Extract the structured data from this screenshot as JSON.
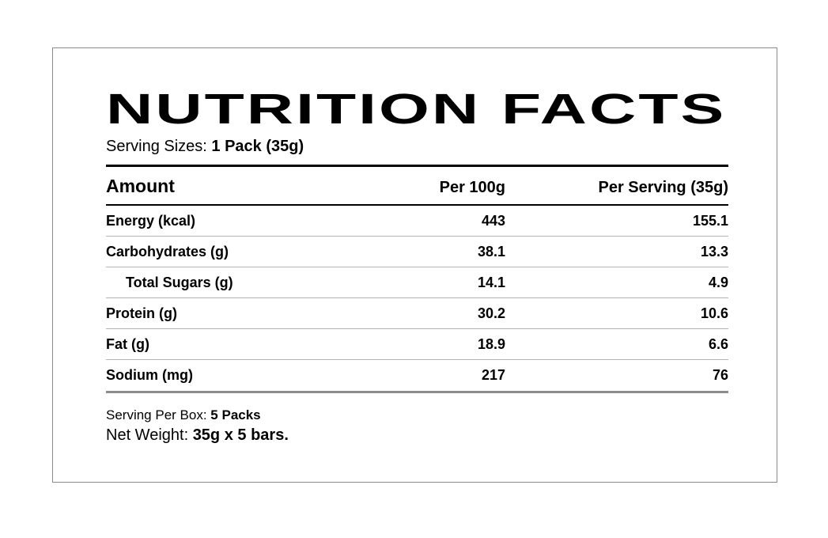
{
  "title": "NUTRITION FACTS",
  "serving_size": {
    "label": "Serving Sizes:",
    "value": "1 Pack (35g)"
  },
  "table": {
    "headers": {
      "amount": "Amount",
      "per_100g": "Per 100g",
      "per_serving": "Per Serving (35g)"
    },
    "rows": [
      {
        "name": "Energy (kcal)",
        "per_100g": "443",
        "per_serving": "155.1",
        "indent": false
      },
      {
        "name": "Carbohydrates (g)",
        "per_100g": "38.1",
        "per_serving": "13.3",
        "indent": false
      },
      {
        "name": "Total Sugars (g)",
        "per_100g": "14.1",
        "per_serving": "4.9",
        "indent": true
      },
      {
        "name": "Protein (g)",
        "per_100g": "30.2",
        "per_serving": "10.6",
        "indent": false
      },
      {
        "name": "Fat (g)",
        "per_100g": "18.9",
        "per_serving": "6.6",
        "indent": false
      },
      {
        "name": "Sodium (mg)",
        "per_100g": "217",
        "per_serving": "76",
        "indent": false
      }
    ]
  },
  "footer": {
    "serving_per_box_label": "Serving Per Box:",
    "serving_per_box_value": "5 Packs",
    "net_weight_label": "Net Weight:",
    "net_weight_value": "35g x 5 bars."
  },
  "colors": {
    "text": "#000000",
    "row_divider": "#b3b3b3",
    "strong_rule": "#000000",
    "table_end_rule": "#8c8c8c",
    "box_border": "#8a8a8a",
    "background": "#ffffff"
  }
}
